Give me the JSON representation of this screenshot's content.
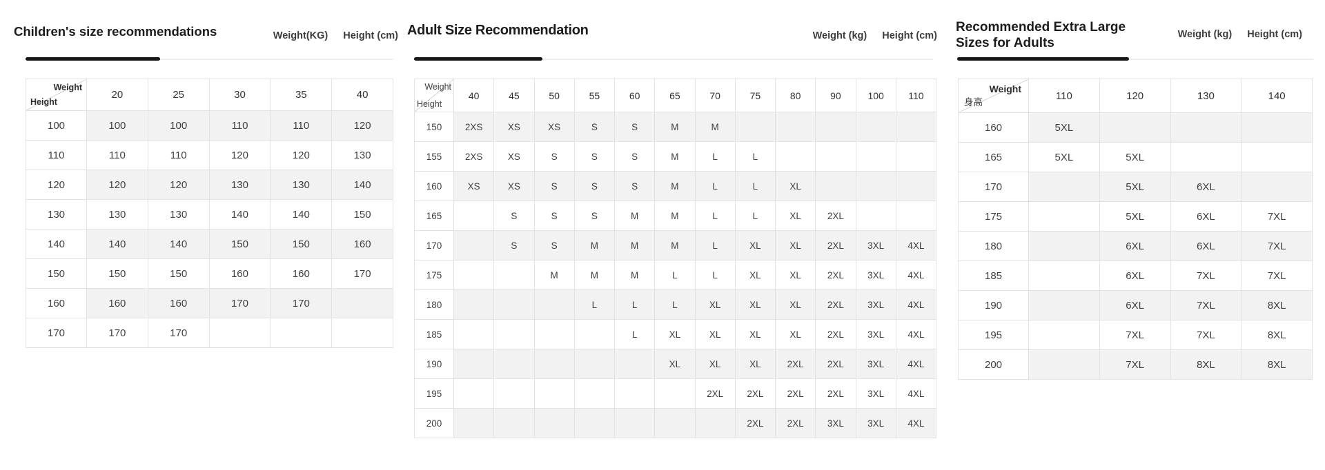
{
  "colors": {
    "background": "#ffffff",
    "stripe_row": "#f2f2f2",
    "table_border": "#e2e2e2",
    "title_text": "#1c1c1c",
    "cell_text": "#3f3f3f",
    "divider_accent": "#171717",
    "divider_base": "#efefef"
  },
  "sections": [
    {
      "title": "Children's size recommendations",
      "weight_unit_label": "Weight(KG)",
      "height_unit_label": "Height (cm)",
      "corner": {
        "weight": "Weight",
        "height": "Height"
      },
      "weight_columns": [
        "20",
        "25",
        "30",
        "35",
        "40"
      ],
      "rows": [
        {
          "height": "100",
          "sizes": [
            "100",
            "100",
            "110",
            "110",
            "120"
          ]
        },
        {
          "height": "110",
          "sizes": [
            "110",
            "110",
            "120",
            "120",
            "130"
          ]
        },
        {
          "height": "120",
          "sizes": [
            "120",
            "120",
            "130",
            "130",
            "140"
          ]
        },
        {
          "height": "130",
          "sizes": [
            "130",
            "130",
            "140",
            "140",
            "150"
          ]
        },
        {
          "height": "140",
          "sizes": [
            "140",
            "140",
            "150",
            "150",
            "160"
          ]
        },
        {
          "height": "150",
          "sizes": [
            "150",
            "150",
            "160",
            "160",
            "170"
          ]
        },
        {
          "height": "160",
          "sizes": [
            "160",
            "160",
            "170",
            "170",
            ""
          ]
        },
        {
          "height": "170",
          "sizes": [
            "170",
            "170",
            "",
            "",
            ""
          ]
        }
      ]
    },
    {
      "title": "Adult Size Recommendation",
      "weight_unit_label": "Weight (kg)",
      "height_unit_label": "Height (cm)",
      "corner": {
        "weight": "Weight",
        "height": "Height"
      },
      "weight_columns": [
        "40",
        "45",
        "50",
        "55",
        "60",
        "65",
        "70",
        "75",
        "80",
        "90",
        "100",
        "110"
      ],
      "rows": [
        {
          "height": "150",
          "sizes": [
            "2XS",
            "XS",
            "XS",
            "S",
            "S",
            "M",
            "M",
            "",
            "",
            "",
            "",
            ""
          ]
        },
        {
          "height": "155",
          "sizes": [
            "2XS",
            "XS",
            "S",
            "S",
            "S",
            "M",
            "L",
            "L",
            "",
            "",
            "",
            ""
          ]
        },
        {
          "height": "160",
          "sizes": [
            "XS",
            "XS",
            "S",
            "S",
            "S",
            "M",
            "L",
            "L",
            "XL",
            "",
            "",
            ""
          ]
        },
        {
          "height": "165",
          "sizes": [
            "",
            "S",
            "S",
            "S",
            "M",
            "M",
            "L",
            "L",
            "XL",
            "2XL",
            "",
            ""
          ]
        },
        {
          "height": "170",
          "sizes": [
            "",
            "S",
            "S",
            "M",
            "M",
            "M",
            "L",
            "XL",
            "XL",
            "2XL",
            "3XL",
            "4XL"
          ]
        },
        {
          "height": "175",
          "sizes": [
            "",
            "",
            "M",
            "M",
            "M",
            "L",
            "L",
            "XL",
            "XL",
            "2XL",
            "3XL",
            "4XL"
          ]
        },
        {
          "height": "180",
          "sizes": [
            "",
            "",
            "",
            "L",
            "L",
            "L",
            "XL",
            "XL",
            "XL",
            "2XL",
            "3XL",
            "4XL"
          ]
        },
        {
          "height": "185",
          "sizes": [
            "",
            "",
            "",
            "",
            "L",
            "XL",
            "XL",
            "XL",
            "XL",
            "2XL",
            "3XL",
            "4XL"
          ]
        },
        {
          "height": "190",
          "sizes": [
            "",
            "",
            "",
            "",
            "",
            "XL",
            "XL",
            "XL",
            "2XL",
            "2XL",
            "3XL",
            "4XL"
          ]
        },
        {
          "height": "195",
          "sizes": [
            "",
            "",
            "",
            "",
            "",
            "",
            "2XL",
            "2XL",
            "2XL",
            "2XL",
            "3XL",
            "4XL"
          ]
        },
        {
          "height": "200",
          "sizes": [
            "",
            "",
            "",
            "",
            "",
            "",
            "",
            "2XL",
            "2XL",
            "3XL",
            "3XL",
            "4XL"
          ]
        }
      ]
    },
    {
      "title": "Recommended Extra Large Sizes for Adults",
      "weight_unit_label": "Weight (kg)",
      "height_unit_label": "Height (cm)",
      "corner": {
        "weight": "Weight",
        "height": "身高"
      },
      "weight_columns": [
        "110",
        "120",
        "130",
        "140"
      ],
      "rows": [
        {
          "height": "160",
          "sizes": [
            "5XL",
            "",
            "",
            ""
          ]
        },
        {
          "height": "165",
          "sizes": [
            "5XL",
            "5XL",
            "",
            ""
          ]
        },
        {
          "height": "170",
          "sizes": [
            "",
            "5XL",
            "6XL",
            ""
          ]
        },
        {
          "height": "175",
          "sizes": [
            "",
            "5XL",
            "6XL",
            "7XL"
          ]
        },
        {
          "height": "180",
          "sizes": [
            "",
            "6XL",
            "6XL",
            "7XL"
          ]
        },
        {
          "height": "185",
          "sizes": [
            "",
            "6XL",
            "7XL",
            "7XL"
          ]
        },
        {
          "height": "190",
          "sizes": [
            "",
            "6XL",
            "7XL",
            "8XL"
          ]
        },
        {
          "height": "195",
          "sizes": [
            "",
            "7XL",
            "7XL",
            "8XL"
          ]
        },
        {
          "height": "200",
          "sizes": [
            "",
            "7XL",
            "8XL",
            "8XL"
          ]
        }
      ]
    }
  ]
}
